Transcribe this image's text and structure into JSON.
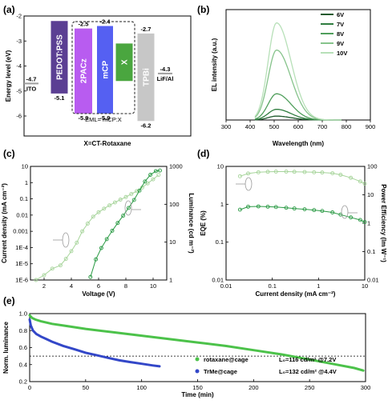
{
  "panel_labels": {
    "a": "(a)",
    "b": "(b)",
    "c": "(c)",
    "d": "(d)",
    "e": "(e)"
  },
  "chart_data": [
    {
      "id": "a",
      "type": "diagram",
      "ylabel": "Energy level (eV)",
      "ylim": [
        -6.8,
        -2.0
      ],
      "yticks": [
        -2,
        -3,
        -4,
        -5,
        -6
      ],
      "ytick_labels": [
        "-2",
        "-3",
        "-4",
        "-5",
        "-6"
      ],
      "layers": [
        {
          "name": "ITO",
          "level": -4.7,
          "level_label": "-4.7",
          "color": "#9e9e9e"
        },
        {
          "name": "PEDOT:PSS",
          "top": -2.2,
          "bottom": -5.1,
          "bottom_label": "-5.1",
          "color": "#5b3f93"
        },
        {
          "name": "2PACz",
          "top": -2.5,
          "bottom": -5.9,
          "top_label": "-2.5",
          "bottom_label": "-5.9",
          "color": "#b85cf0"
        },
        {
          "name": "mCP",
          "top": -2.4,
          "bottom": -5.9,
          "top_label": "-2.4",
          "bottom_label": "-5.9",
          "color": "#5560f2"
        },
        {
          "name": "X",
          "top": -3.1,
          "bottom": -4.6,
          "color": "#4aa63f"
        },
        {
          "name": "TPBi",
          "top": -2.7,
          "bottom": -6.2,
          "top_label": "-2.7",
          "bottom_label": "-6.2",
          "color": "#c7c7c7"
        },
        {
          "name": "LiF/Al",
          "level": -4.3,
          "level_label": "-4.3",
          "color": "#9e9e9e"
        }
      ],
      "eml_label": "EML= mCP:X",
      "caption": "X=CT-Rotaxane"
    },
    {
      "id": "b",
      "type": "line",
      "xlabel": "Wavelength (nm)",
      "ylabel": "EL intensity (a.u.)",
      "xlim": [
        300,
        900
      ],
      "xticks": [
        300,
        400,
        500,
        600,
        700,
        800,
        900
      ],
      "peak_wavelength": 510,
      "series": [
        {
          "name": "6V",
          "peak": 0.04,
          "color": "#1f5a2d"
        },
        {
          "name": "7V",
          "peak": 0.11,
          "color": "#2f7d3f"
        },
        {
          "name": "8V",
          "peak": 0.27,
          "color": "#4f9e5b"
        },
        {
          "name": "9V",
          "peak": 0.72,
          "color": "#86c38b"
        },
        {
          "name": "10V",
          "peak": 1.0,
          "color": "#b7e0b8"
        }
      ]
    },
    {
      "id": "c",
      "type": "scatter",
      "xlabel": "Voltage (V)",
      "ylabel": "Current density (mA cm⁻²)",
      "y2label": "Luminance (cd m⁻²)",
      "xlim": [
        1,
        11
      ],
      "xticks": [
        2,
        4,
        6,
        8,
        10
      ],
      "ylim_log": [
        -6,
        1
      ],
      "yticks": [
        "1E-6",
        "1E-5",
        "1E-4",
        "0.001",
        "0.01",
        "0.1",
        "1",
        "10"
      ],
      "y2lim_log": [
        0,
        3
      ],
      "y2ticks": [
        "1",
        "10",
        "100",
        "1000"
      ],
      "series": [
        {
          "name": "Current density",
          "axis": "left",
          "color": "#a6d49a",
          "x": [
            1.4,
            2.0,
            2.6,
            3.2,
            3.6,
            4.0,
            4.4,
            4.8,
            5.2,
            5.6,
            6.0,
            6.4,
            6.8,
            7.2,
            7.6,
            8.0,
            8.4,
            8.8,
            9.2,
            9.6,
            10.0,
            10.4
          ],
          "y": [
            1e-06,
            2e-06,
            5e-06,
            8e-06,
            2e-05,
            6e-05,
            0.0002,
            0.001,
            0.003,
            0.008,
            0.015,
            0.025,
            0.04,
            0.06,
            0.09,
            0.13,
            0.2,
            0.3,
            0.5,
            0.9,
            1.6,
            3.0
          ]
        },
        {
          "name": "Luminance",
          "axis": "right",
          "color": "#2a9a44",
          "x": [
            5.4,
            5.8,
            6.2,
            6.6,
            7.0,
            7.4,
            7.8,
            8.2,
            8.6,
            9.0,
            9.4,
            9.8,
            10.2,
            10.5
          ],
          "y": [
            1.2,
            3.5,
            7,
            12,
            20,
            32,
            50,
            80,
            130,
            230,
            400,
            600,
            750,
            780
          ]
        }
      ]
    },
    {
      "id": "d",
      "type": "scatter",
      "xlabel": "Current density (mA cm⁻²)",
      "ylabel": "EQE (%)",
      "y2label": "Power Efficiency (lm W⁻¹)",
      "xlim_log": [
        -2,
        1
      ],
      "xticks": [
        "0.01",
        "0.1",
        "1",
        "10"
      ],
      "ylim_log": [
        -2,
        1
      ],
      "yticks": [
        "0.01",
        "0.1",
        "1",
        "10"
      ],
      "y2lim_log": [
        -2,
        2
      ],
      "y2ticks": [
        "0.01",
        "0.1",
        "1",
        "10",
        "100"
      ],
      "series": [
        {
          "name": "EQE",
          "axis": "left",
          "color": "#a6d49a",
          "x": [
            0.02,
            0.03,
            0.05,
            0.08,
            0.12,
            0.2,
            0.3,
            0.5,
            0.8,
            1.2,
            2,
            3,
            5,
            8,
            10
          ],
          "y": [
            5.5,
            6.5,
            7.0,
            7.2,
            7.3,
            7.3,
            7.2,
            7.1,
            7.0,
            6.9,
            6.6,
            6.0,
            5.0,
            4.0,
            3.5
          ]
        },
        {
          "name": "Power Efficiency",
          "axis": "right",
          "color": "#2a9a44",
          "x": [
            0.02,
            0.03,
            0.05,
            0.08,
            0.12,
            0.2,
            0.3,
            0.5,
            0.8,
            1.2,
            2,
            3,
            5,
            8,
            10
          ],
          "y": [
            3.0,
            3.8,
            3.9,
            3.8,
            3.7,
            3.5,
            3.3,
            3.1,
            2.9,
            2.7,
            2.4,
            2.0,
            1.6,
            1.3,
            1.1
          ]
        }
      ]
    },
    {
      "id": "e",
      "type": "line",
      "xlabel": "Time (min)",
      "ylabel": "Norm. luminance",
      "xlim": [
        0,
        300
      ],
      "xticks": [
        0,
        50,
        100,
        150,
        200,
        250,
        300
      ],
      "ylim": [
        0.2,
        1.0
      ],
      "yticks": [
        0.2,
        0.4,
        0.6,
        0.8,
        1.0
      ],
      "ytick_labels": [
        "0.2",
        "0.4",
        "0.6",
        "0.8",
        "1.0"
      ],
      "reference_line": 0.5,
      "legend_position": "bottom-right",
      "series": [
        {
          "name": "rotaxane@cage",
          "note": "L₀=116 cd/m² @7.2V",
          "color": "#4cc24a",
          "x": [
            0,
            2,
            5,
            10,
            20,
            30,
            50,
            75,
            100,
            125,
            150,
            175,
            200,
            225,
            250,
            270,
            290,
            298
          ],
          "y": [
            0.98,
            0.95,
            0.93,
            0.91,
            0.88,
            0.86,
            0.82,
            0.78,
            0.74,
            0.7,
            0.66,
            0.62,
            0.57,
            0.52,
            0.46,
            0.41,
            0.36,
            0.33
          ]
        },
        {
          "name": "TrMe@cage",
          "note": "L₀=132 cd/m² @4.4V",
          "color": "#3347c8",
          "x": [
            0,
            1,
            3,
            6,
            10,
            15,
            20,
            30,
            40,
            50,
            60,
            70,
            80,
            90,
            100,
            110,
            116
          ],
          "y": [
            0.93,
            0.86,
            0.8,
            0.76,
            0.73,
            0.7,
            0.67,
            0.62,
            0.58,
            0.54,
            0.51,
            0.48,
            0.45,
            0.43,
            0.41,
            0.39,
            0.38
          ]
        }
      ]
    }
  ]
}
